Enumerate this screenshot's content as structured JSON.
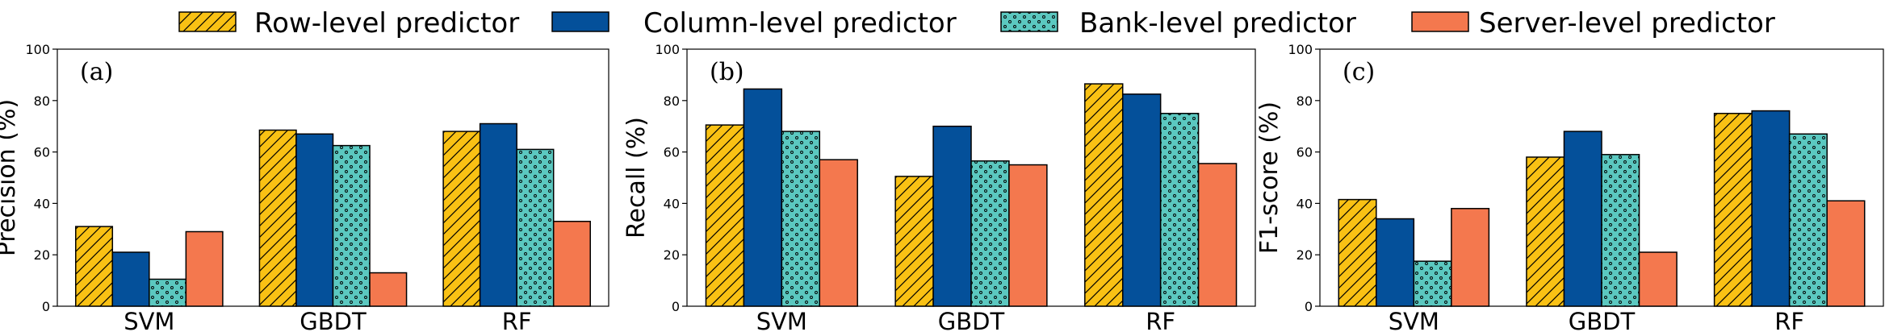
{
  "colors": {
    "row": "#F9C114",
    "column": "#04509A",
    "bank": "#5BC8C0",
    "server": "#F4784E",
    "hatch_line": "#000000",
    "axis": "#000000"
  },
  "legend": [
    {
      "key": "row",
      "label": "Row-level predictor",
      "pattern": "diagonal-hatch"
    },
    {
      "key": "column",
      "label": "Column-level predictor",
      "pattern": "solid"
    },
    {
      "key": "bank",
      "label": "Bank-level predictor",
      "pattern": "star-dots"
    },
    {
      "key": "server",
      "label": "Server-level predictor",
      "pattern": "solid"
    }
  ],
  "chart_data": [
    {
      "type": "bar",
      "panel_label": "(a)",
      "ylabel": "Precision (%)",
      "ylim": [
        0,
        100
      ],
      "yticks": [
        0,
        20,
        40,
        60,
        80,
        100
      ],
      "categories": [
        "SVM",
        "GBDT",
        "RF"
      ],
      "series": [
        {
          "name": "Row-level predictor",
          "key": "row",
          "values": [
            31,
            68.5,
            68
          ]
        },
        {
          "name": "Column-level predictor",
          "key": "column",
          "values": [
            21,
            67,
            71
          ]
        },
        {
          "name": "Bank-level predictor",
          "key": "bank",
          "values": [
            10.5,
            62.5,
            61
          ]
        },
        {
          "name": "Server-level predictor",
          "key": "server",
          "values": [
            29,
            13,
            33
          ]
        }
      ]
    },
    {
      "type": "bar",
      "panel_label": "(b)",
      "ylabel": "Recall (%)",
      "ylim": [
        0,
        100
      ],
      "yticks": [
        0,
        20,
        40,
        60,
        80,
        100
      ],
      "categories": [
        "SVM",
        "GBDT",
        "RF"
      ],
      "series": [
        {
          "name": "Row-level predictor",
          "key": "row",
          "values": [
            70.5,
            50.5,
            86.5
          ]
        },
        {
          "name": "Column-level predictor",
          "key": "column",
          "values": [
            84.5,
            70,
            82.5
          ]
        },
        {
          "name": "Bank-level predictor",
          "key": "bank",
          "values": [
            68,
            56.5,
            75
          ]
        },
        {
          "name": "Server-level predictor",
          "key": "server",
          "values": [
            57,
            55,
            55.5
          ]
        }
      ]
    },
    {
      "type": "bar",
      "panel_label": "(c)",
      "ylabel": "F1-score (%)",
      "ylim": [
        0,
        100
      ],
      "yticks": [
        0,
        20,
        40,
        60,
        80,
        100
      ],
      "categories": [
        "SVM",
        "GBDT",
        "RF"
      ],
      "series": [
        {
          "name": "Row-level predictor",
          "key": "row",
          "values": [
            41.5,
            58,
            75
          ]
        },
        {
          "name": "Column-level predictor",
          "key": "column",
          "values": [
            34,
            68,
            76
          ]
        },
        {
          "name": "Bank-level predictor",
          "key": "bank",
          "values": [
            17.5,
            59,
            67
          ]
        },
        {
          "name": "Server-level predictor",
          "key": "server",
          "values": [
            38,
            21,
            41
          ]
        }
      ]
    }
  ]
}
